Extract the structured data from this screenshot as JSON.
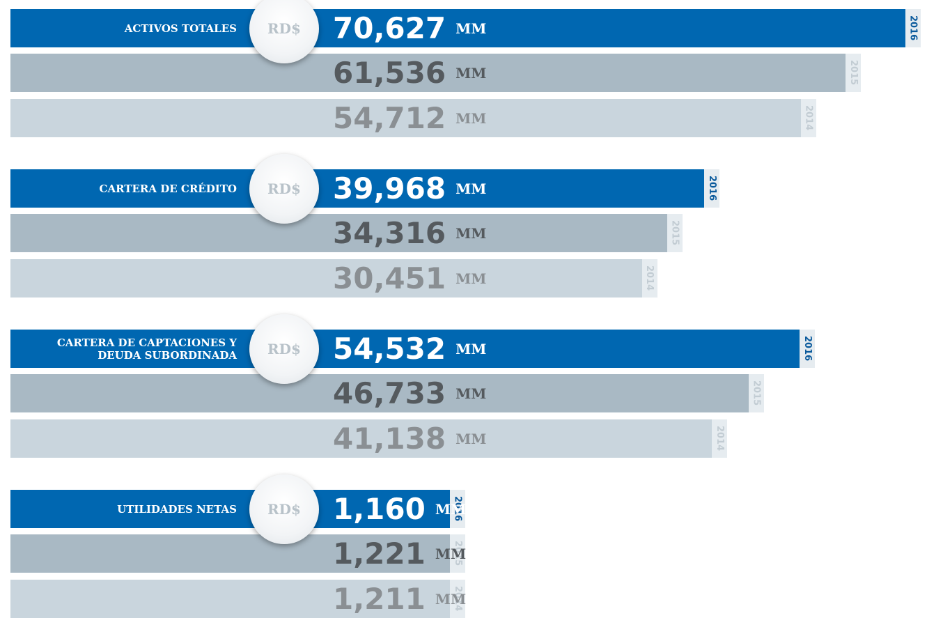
{
  "chart_data": [
    {
      "type": "bar",
      "title": "ACTIVOS TOTALES",
      "currency": "RD$",
      "unit": "MM",
      "categories": [
        "2016",
        "2015",
        "2014"
      ],
      "values": [
        70627,
        61536,
        54712
      ],
      "value_labels": [
        "70,627",
        "61,536",
        "54,712"
      ],
      "colors": [
        "#0067b1",
        "#a9b9c4",
        "#c9d5dd"
      ]
    },
    {
      "type": "bar",
      "title": "CARTERA DE CRÉDITO",
      "currency": "RD$",
      "unit": "MM",
      "categories": [
        "2016",
        "2015",
        "2014"
      ],
      "values": [
        39968,
        34316,
        30451
      ],
      "value_labels": [
        "39,968",
        "34,316",
        "30,451"
      ],
      "colors": [
        "#0067b1",
        "#a9b9c4",
        "#c9d5dd"
      ]
    },
    {
      "type": "bar",
      "title": "CARTERA DE CAPTACIONES Y DEUDA SUBORDINADA",
      "currency": "RD$",
      "unit": "MM",
      "categories": [
        "2016",
        "2015",
        "2014"
      ],
      "values": [
        54532,
        46733,
        41138
      ],
      "value_labels": [
        "54,532",
        "46,733",
        "41,138"
      ],
      "colors": [
        "#0067b1",
        "#a9b9c4",
        "#c9d5dd"
      ]
    },
    {
      "type": "bar",
      "title": "UTILIDADES NETAS",
      "currency": "RD$",
      "unit": "MM",
      "categories": [
        "2016",
        "2015",
        "2014"
      ],
      "values": [
        1160,
        1221,
        1211
      ],
      "value_labels": [
        "1,160",
        "1,221",
        "1,211"
      ],
      "colors": [
        "#0067b1",
        "#a9b9c4",
        "#c9d5dd"
      ]
    }
  ]
}
